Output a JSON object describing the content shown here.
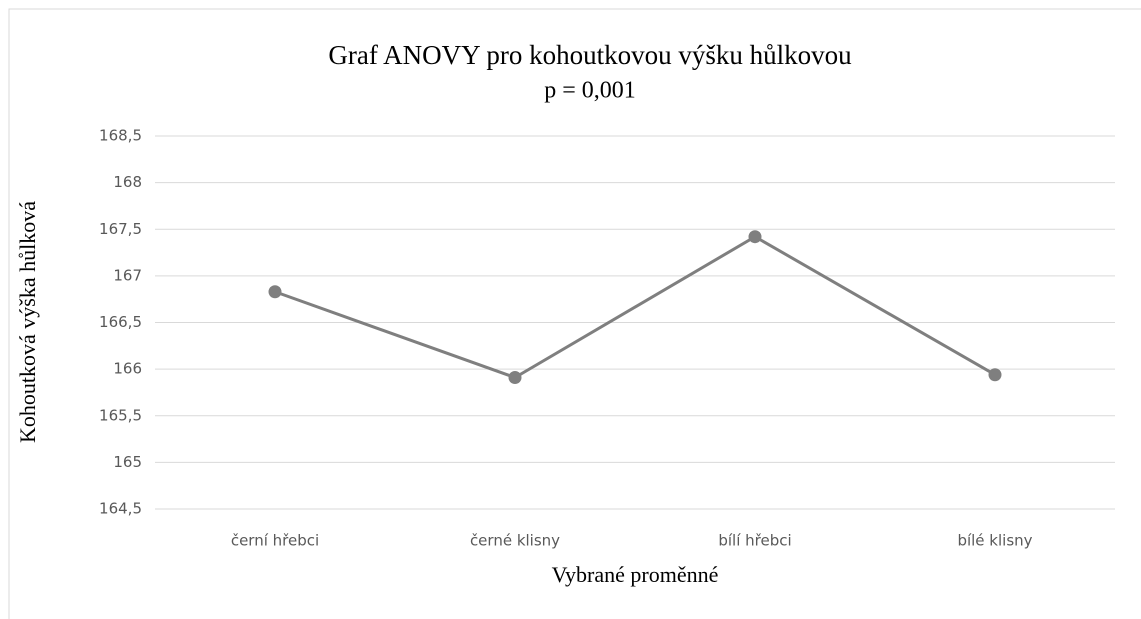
{
  "chart_data": {
    "type": "line",
    "title": "Graf ANOVY pro kohoutkovou výšku hůlkovou",
    "subtitle": "p = 0,001",
    "x_label": "Vybrané proměnné",
    "y_label": "Kohoutková výška hůlková",
    "categories": [
      "černí hřebci",
      "černé klisny",
      "bílí hřebci",
      "bílé klisny"
    ],
    "values": [
      166.83,
      165.91,
      167.42,
      165.94
    ],
    "color": "#7f7f7f",
    "ylim": [
      164.5,
      168.5
    ],
    "yticks": [
      {
        "value": 164.5,
        "label": "164,5"
      },
      165,
      {
        "value": 165.5,
        "label": "165,5"
      },
      166,
      {
        "value": 166.5,
        "label": "166,5"
      },
      167,
      {
        "value": 167.5,
        "label": "167,5"
      },
      168,
      {
        "value": 168.5,
        "label": "168,5"
      }
    ],
    "grid": true
  }
}
